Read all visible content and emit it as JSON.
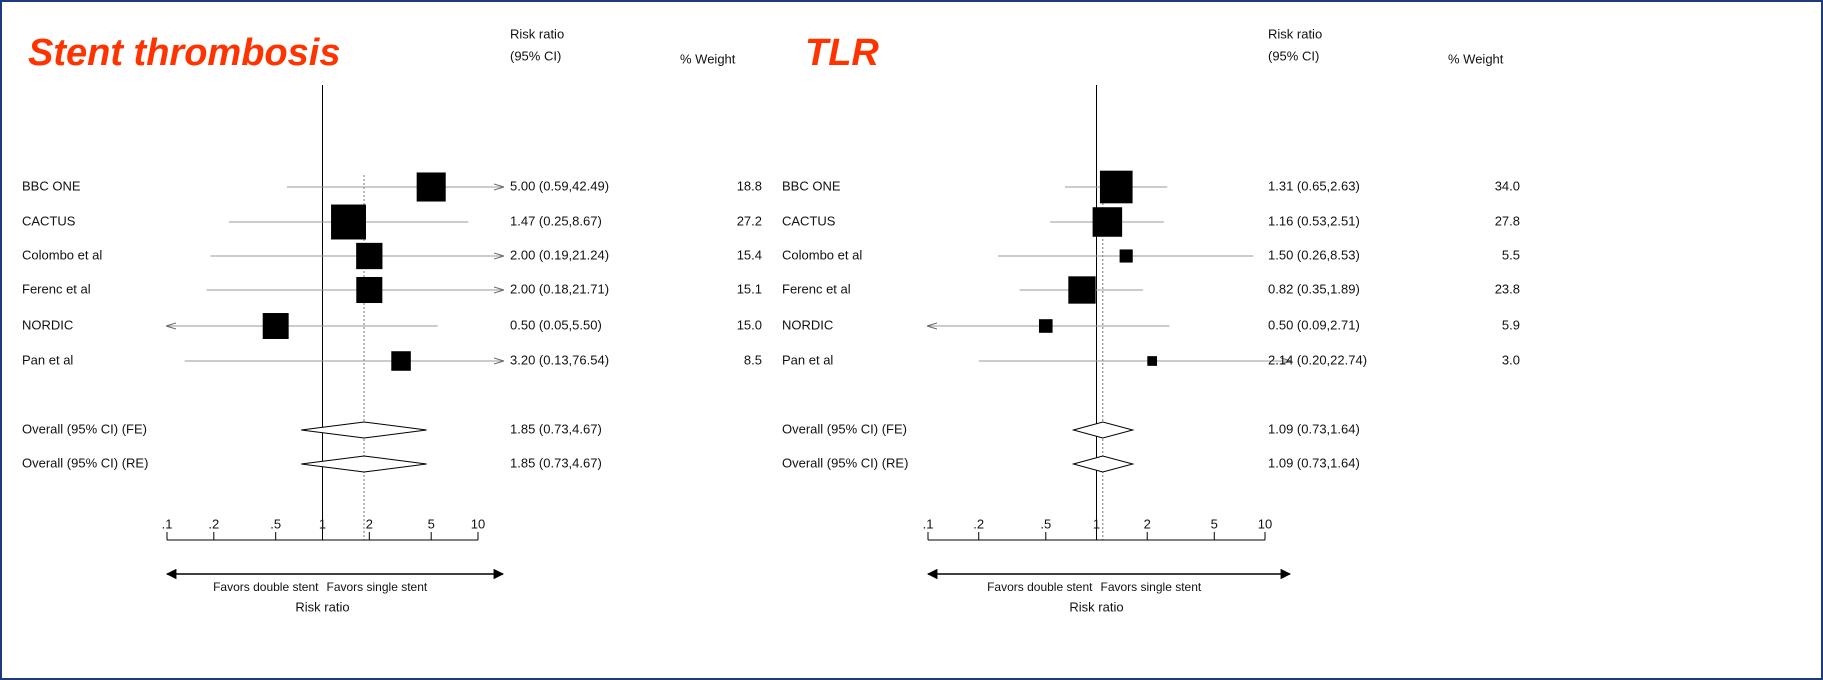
{
  "chart_data": [
    {
      "type": "forest",
      "title": "Stent thrombosis",
      "ci_header": [
        "Risk ratio",
        "(95% CI)"
      ],
      "weight_header": "% Weight",
      "categories": [
        "BBC ONE",
        "CACTUS",
        "Colombo et al",
        "Ferenc et al",
        "NORDIC",
        "Pan et al"
      ],
      "values": [
        5.0,
        1.47,
        2.0,
        2.0,
        0.5,
        3.2
      ],
      "lower": [
        0.59,
        0.25,
        0.19,
        0.18,
        0.05,
        0.13
      ],
      "upper": [
        42.49,
        8.67,
        21.24,
        21.71,
        5.5,
        76.54
      ],
      "value_labels": [
        "5.00 (0.59,42.49)",
        "1.47 (0.25,8.67)",
        "2.00 (0.19,21.24)",
        "2.00 (0.18,21.71)",
        "0.50 (0.05,5.50)",
        "3.20 (0.13,76.54)"
      ],
      "weights": [
        18.8,
        27.2,
        15.4,
        15.1,
        15.0,
        8.5
      ],
      "weight_labels": [
        "18.8",
        "27.2",
        "15.4",
        "15.1",
        "15.0",
        "8.5"
      ],
      "overall": [
        {
          "name": "Overall (95% CI) (FE)",
          "value": 1.85,
          "lower": 0.73,
          "upper": 4.67,
          "value_label": "1.85 (0.73,4.67)"
        },
        {
          "name": "Overall (95% CI) (RE)",
          "value": 1.85,
          "lower": 0.73,
          "upper": 4.67,
          "value_label": "1.85 (0.73,4.67)"
        }
      ],
      "xlim": [
        0.1,
        10
      ],
      "log_x": true,
      "xticks": [
        {
          "value": 0.1,
          "label": ".1"
        },
        {
          "value": 0.2,
          "label": ".2"
        },
        {
          "value": 0.5,
          "label": ".5"
        },
        1,
        2,
        5,
        10
      ],
      "xlabel": "Risk ratio",
      "annotations": [
        "Favors double stent",
        "Favors single stent"
      ],
      "color": "#000000"
    },
    {
      "type": "forest",
      "title": "TLR",
      "ci_header": [
        "Risk ratio",
        "(95% CI)"
      ],
      "weight_header": "% Weight",
      "categories": [
        "BBC ONE",
        "CACTUS",
        "Colombo et al",
        "Ferenc et al",
        "NORDIC",
        "Pan et al"
      ],
      "values": [
        1.31,
        1.16,
        1.5,
        0.82,
        0.5,
        2.14
      ],
      "lower": [
        0.65,
        0.53,
        0.26,
        0.35,
        0.09,
        0.2
      ],
      "upper": [
        2.63,
        2.51,
        8.53,
        1.89,
        2.71,
        22.74
      ],
      "value_labels": [
        "1.31 (0.65,2.63)",
        "1.16 (0.53,2.51)",
        "1.50 (0.26,8.53)",
        "0.82 (0.35,1.89)",
        "0.50 (0.09,2.71)",
        "2.14 (0.20,22.74)"
      ],
      "weights": [
        34.0,
        27.8,
        5.5,
        23.8,
        5.9,
        3.0
      ],
      "weight_labels": [
        "34.0",
        "27.8",
        "5.5",
        "23.8",
        "5.9",
        "3.0"
      ],
      "overall": [
        {
          "name": "Overall (95% CI) (FE)",
          "value": 1.09,
          "lower": 0.73,
          "upper": 1.64,
          "value_label": "1.09 (0.73,1.64)"
        },
        {
          "name": "Overall (95% CI) (RE)",
          "value": 1.09,
          "lower": 0.73,
          "upper": 1.64,
          "value_label": "1.09 (0.73,1.64)"
        }
      ],
      "xlim": [
        0.1,
        10
      ],
      "log_x": true,
      "xticks": [
        {
          "value": 0.1,
          "label": ".1"
        },
        {
          "value": 0.2,
          "label": ".2"
        },
        {
          "value": 0.5,
          "label": ".5"
        },
        1,
        2,
        5,
        10
      ],
      "xlabel": "Risk ratio",
      "annotations": [
        "Favors double stent",
        "Favors single stent"
      ],
      "color": "#000000"
    }
  ]
}
